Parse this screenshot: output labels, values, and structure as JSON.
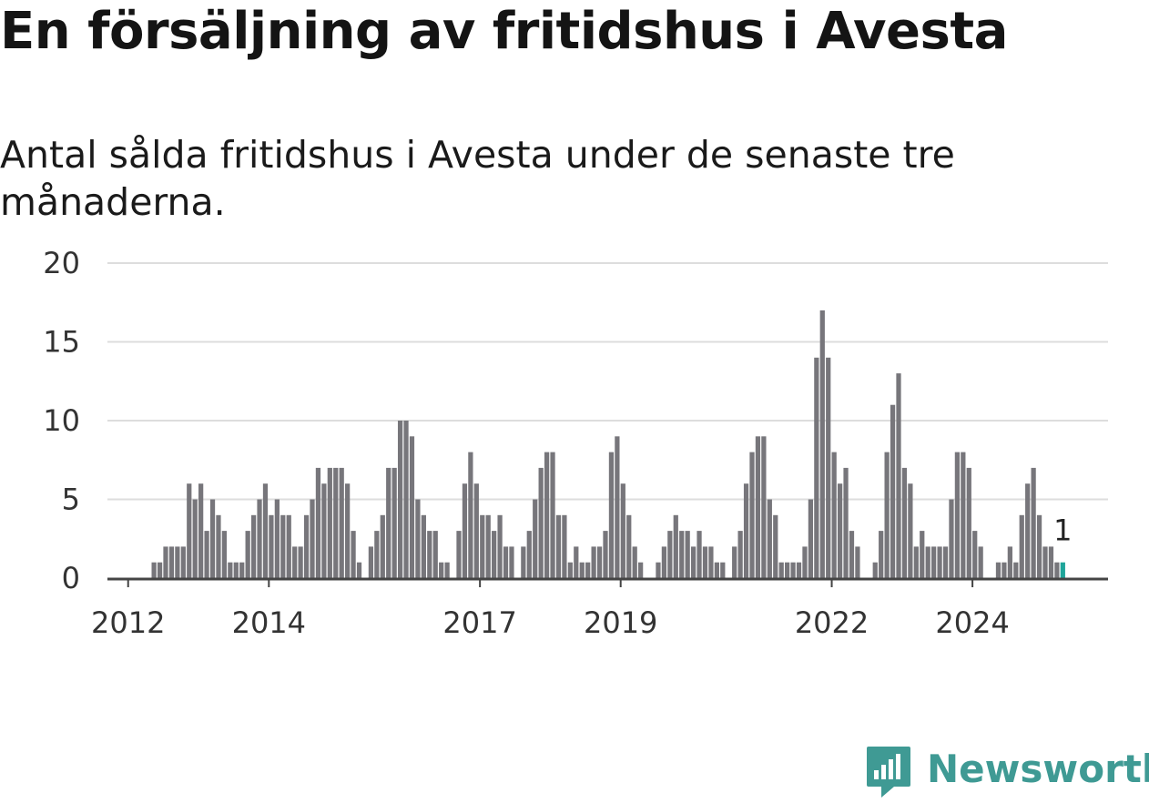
{
  "title": "En försäljning av fritidshus i Avesta",
  "subtitle": "Antal sålda fritidshus i Avesta under de senaste tre månaderna.",
  "colors": {
    "bar": "#77767b",
    "highlight": "#1fa59a",
    "grid": "#dddddd",
    "axis": "#444444",
    "brand": "#3f9a94"
  },
  "logo": {
    "text": "Newsworthy",
    "icon": "bar-chart-speech-bubble-icon"
  },
  "chart_data": {
    "type": "bar",
    "title": "",
    "xlabel": "",
    "ylabel": "",
    "ylim": [
      0,
      20
    ],
    "yticks": [
      0,
      5,
      10,
      15,
      20
    ],
    "grid": true,
    "legend": "none",
    "start": "2011-09",
    "frequency": "monthly",
    "x_tick_labels": [
      {
        "label": "2012",
        "month": "2012-01"
      },
      {
        "label": "2014",
        "month": "2014-01"
      },
      {
        "label": "2017",
        "month": "2017-01"
      },
      {
        "label": "2019",
        "month": "2019-01"
      },
      {
        "label": "2022",
        "month": "2022-01"
      },
      {
        "label": "2024",
        "month": "2024-01"
      }
    ],
    "values": [
      0,
      0,
      0,
      0,
      0,
      0,
      0,
      0,
      1,
      1,
      2,
      2,
      2,
      2,
      6,
      5,
      6,
      3,
      5,
      4,
      3,
      1,
      1,
      1,
      3,
      4,
      5,
      6,
      4,
      5,
      4,
      4,
      2,
      2,
      4,
      5,
      7,
      6,
      7,
      7,
      7,
      6,
      3,
      1,
      0,
      2,
      3,
      4,
      7,
      7,
      10,
      10,
      9,
      5,
      4,
      3,
      3,
      1,
      1,
      0,
      3,
      6,
      8,
      6,
      4,
      4,
      3,
      4,
      2,
      2,
      0,
      2,
      3,
      5,
      7,
      8,
      8,
      4,
      4,
      1,
      2,
      1,
      1,
      2,
      2,
      3,
      8,
      9,
      6,
      4,
      2,
      1,
      0,
      0,
      1,
      2,
      3,
      4,
      3,
      3,
      2,
      3,
      2,
      2,
      1,
      1,
      0,
      2,
      3,
      6,
      8,
      9,
      9,
      5,
      4,
      1,
      1,
      1,
      1,
      2,
      5,
      14,
      17,
      14,
      8,
      6,
      7,
      3,
      2,
      0,
      0,
      1,
      3,
      8,
      11,
      13,
      7,
      6,
      2,
      3,
      2,
      2,
      2,
      2,
      5,
      8,
      8,
      7,
      3,
      2,
      0,
      0,
      1,
      1,
      2,
      1,
      4,
      6,
      7,
      4,
      2,
      2,
      1,
      1
    ],
    "highlight_last": true,
    "last_value_label": "1"
  }
}
